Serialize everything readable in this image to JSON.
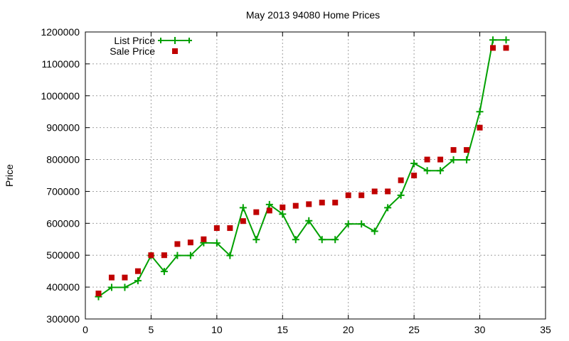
{
  "chart_data": {
    "type": "line",
    "title": "May 2013 94080 Home Prices",
    "xlabel": "",
    "ylabel": "Price",
    "xlim": [
      0,
      35
    ],
    "ylim": [
      300000,
      1200000
    ],
    "x_ticks": [
      0,
      5,
      10,
      15,
      20,
      25,
      30,
      35
    ],
    "y_ticks": [
      300000,
      400000,
      500000,
      600000,
      700000,
      800000,
      900000,
      1000000,
      1100000,
      1200000
    ],
    "grid": true,
    "legend_position": "top-left",
    "series": [
      {
        "name": "List Price",
        "style": "line-with-plus-markers",
        "color": "#00a000",
        "x": [
          1,
          2,
          3,
          4,
          5,
          6,
          7,
          8,
          9,
          10,
          11,
          12,
          13,
          14,
          15,
          16,
          17,
          18,
          19,
          20,
          21,
          22,
          23,
          24,
          25,
          26,
          27,
          28,
          29,
          30,
          31,
          32
        ],
        "y": [
          370000,
          399000,
          399000,
          420000,
          499000,
          449000,
          499000,
          499000,
          539000,
          538000,
          499000,
          649000,
          549000,
          659000,
          629000,
          549000,
          608000,
          549000,
          549000,
          598000,
          598000,
          575000,
          649000,
          688000,
          788000,
          765000,
          765000,
          799000,
          799000,
          950000,
          1175000,
          1175000
        ]
      },
      {
        "name": "Sale Price",
        "style": "square-markers",
        "color": "#c00000",
        "x": [
          1,
          2,
          3,
          4,
          5,
          6,
          7,
          8,
          9,
          10,
          11,
          12,
          13,
          14,
          15,
          16,
          17,
          18,
          19,
          20,
          21,
          22,
          23,
          24,
          25,
          26,
          27,
          28,
          29,
          30,
          31,
          32
        ],
        "y": [
          380000,
          430000,
          430000,
          450000,
          500000,
          500000,
          535000,
          540000,
          550000,
          585000,
          585000,
          607000,
          635000,
          640000,
          650000,
          655000,
          660000,
          665000,
          665000,
          688000,
          688000,
          700000,
          700000,
          735000,
          750000,
          800000,
          800000,
          830000,
          830000,
          900000,
          1150000,
          1150000
        ]
      }
    ]
  }
}
